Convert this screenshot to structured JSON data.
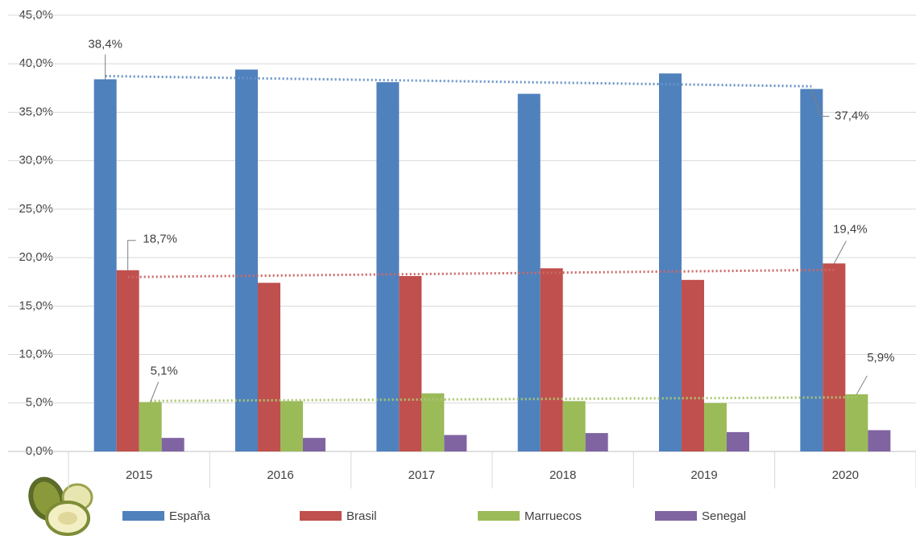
{
  "chart_data": {
    "type": "bar",
    "categories": [
      "2015",
      "2016",
      "2017",
      "2018",
      "2019",
      "2020"
    ],
    "ylim": [
      0,
      45
    ],
    "yticks": [
      {
        "value": 0,
        "label": "0,0%"
      },
      {
        "value": 5,
        "label": "5,0%"
      },
      {
        "value": 10,
        "label": "10,0%"
      },
      {
        "value": 15,
        "label": "15,0%"
      },
      {
        "value": 20,
        "label": "20,0%"
      },
      {
        "value": 25,
        "label": "25,0%"
      },
      {
        "value": 30,
        "label": "30,0%"
      },
      {
        "value": 35,
        "label": "35,0%"
      },
      {
        "value": 40,
        "label": "40,0%"
      },
      {
        "value": 45,
        "label": "45,0%"
      }
    ],
    "grid": true,
    "legend": "bottom",
    "series": [
      {
        "name": "España",
        "color": "#4f81bd",
        "trendline": true,
        "values": [
          38.4,
          39.4,
          38.1,
          36.9,
          39.0,
          37.4
        ],
        "value_labels": [
          "38,4%",
          null,
          null,
          null,
          null,
          "37,4%"
        ]
      },
      {
        "name": "Brasil",
        "color": "#c0504d",
        "trendline": true,
        "values": [
          18.7,
          17.4,
          18.1,
          18.9,
          17.7,
          19.4
        ],
        "value_labels": [
          "18,7%",
          null,
          null,
          null,
          null,
          "19,4%"
        ]
      },
      {
        "name": "Marruecos",
        "color": "#9bbb59",
        "trendline": true,
        "values": [
          5.1,
          5.2,
          6.0,
          5.2,
          5.0,
          5.9
        ],
        "value_labels": [
          "5,1%",
          null,
          null,
          null,
          null,
          "5,9%"
        ]
      },
      {
        "name": "Senegal",
        "color": "#8064a2",
        "trendline": false,
        "values": [
          1.4,
          1.4,
          1.7,
          1.9,
          2.0,
          2.2
        ]
      }
    ]
  }
}
